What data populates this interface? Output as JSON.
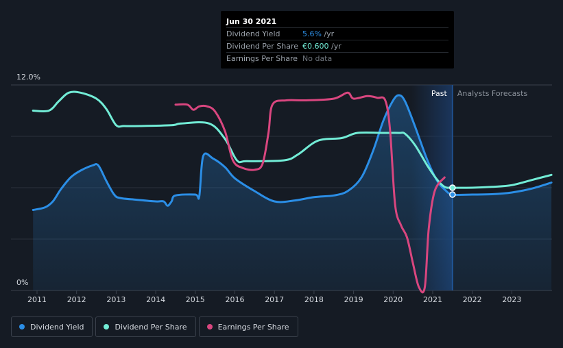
{
  "chart_data": {
    "type": "line",
    "y_axis": {
      "top_label": "12.0%",
      "bottom_label": "0%",
      "ylim": [
        0,
        12
      ],
      "unit": "%"
    },
    "x_axis": {
      "ticks": [
        "2011",
        "2012",
        "2013",
        "2014",
        "2015",
        "2016",
        "2017",
        "2018",
        "2019",
        "2020",
        "2021",
        "2022",
        "2023"
      ]
    },
    "periods": {
      "past": "Past",
      "forecast": "Analysts Forecasts"
    },
    "legend_placement": "bottom-left",
    "grid": true,
    "series": [
      {
        "name": "Dividend Yield",
        "color": "#2b8ee6",
        "area": true,
        "points": [
          [
            2010.9,
            4.7
          ],
          [
            2011.2,
            4.85
          ],
          [
            2011.4,
            5.2
          ],
          [
            2011.6,
            5.9
          ],
          [
            2011.85,
            6.6
          ],
          [
            2012.1,
            7.0
          ],
          [
            2012.4,
            7.3
          ],
          [
            2012.55,
            7.3
          ],
          [
            2012.75,
            6.4
          ],
          [
            2012.95,
            5.6
          ],
          [
            2013.1,
            5.4
          ],
          [
            2013.5,
            5.3
          ],
          [
            2014.0,
            5.2
          ],
          [
            2014.2,
            5.2
          ],
          [
            2014.3,
            4.95
          ],
          [
            2014.4,
            5.2
          ],
          [
            2014.5,
            5.55
          ],
          [
            2015.0,
            5.6
          ],
          [
            2015.1,
            5.5
          ],
          [
            2015.2,
            7.85
          ],
          [
            2015.45,
            7.7
          ],
          [
            2015.75,
            7.2
          ],
          [
            2016.0,
            6.55
          ],
          [
            2016.5,
            5.8
          ],
          [
            2017.0,
            5.2
          ],
          [
            2017.5,
            5.25
          ],
          [
            2018.0,
            5.45
          ],
          [
            2018.5,
            5.55
          ],
          [
            2018.85,
            5.8
          ],
          [
            2019.2,
            6.6
          ],
          [
            2019.5,
            8.2
          ],
          [
            2019.75,
            9.9
          ],
          [
            2020.0,
            11.1
          ],
          [
            2020.15,
            11.4
          ],
          [
            2020.3,
            11.05
          ],
          [
            2020.55,
            9.6
          ],
          [
            2020.85,
            7.7
          ],
          [
            2021.1,
            6.45
          ],
          [
            2021.3,
            5.9
          ],
          [
            2021.5,
            5.6
          ],
          [
            2022.0,
            5.6
          ],
          [
            2022.5,
            5.62
          ],
          [
            2023.0,
            5.72
          ],
          [
            2023.5,
            5.95
          ],
          [
            2024.0,
            6.3
          ]
        ]
      },
      {
        "name": "Dividend Per Share",
        "color": "#72ecd6",
        "area": false,
        "points": [
          [
            2010.9,
            10.5
          ],
          [
            2011.3,
            10.5
          ],
          [
            2011.55,
            11.05
          ],
          [
            2011.8,
            11.55
          ],
          [
            2012.1,
            11.55
          ],
          [
            2012.5,
            11.2
          ],
          [
            2012.75,
            10.6
          ],
          [
            2013.0,
            9.65
          ],
          [
            2013.2,
            9.6
          ],
          [
            2013.6,
            9.6
          ],
          [
            2014.4,
            9.65
          ],
          [
            2014.65,
            9.75
          ],
          [
            2015.35,
            9.75
          ],
          [
            2015.75,
            8.85
          ],
          [
            2016.05,
            7.6
          ],
          [
            2016.3,
            7.55
          ],
          [
            2017.25,
            7.6
          ],
          [
            2017.6,
            7.95
          ],
          [
            2018.1,
            8.75
          ],
          [
            2018.7,
            8.9
          ],
          [
            2019.1,
            9.2
          ],
          [
            2019.75,
            9.2
          ],
          [
            2020.15,
            9.2
          ],
          [
            2020.3,
            9.15
          ],
          [
            2020.55,
            8.5
          ],
          [
            2020.85,
            7.35
          ],
          [
            2021.1,
            6.5
          ],
          [
            2021.3,
            6.05
          ],
          [
            2021.5,
            6.0
          ],
          [
            2022.0,
            6.0
          ],
          [
            2022.5,
            6.05
          ],
          [
            2023.0,
            6.15
          ],
          [
            2023.5,
            6.45
          ],
          [
            2024.0,
            6.75
          ]
        ]
      },
      {
        "name": "Earnings Per Share",
        "color": "#d9467f",
        "area": false,
        "points": [
          [
            2014.5,
            10.85
          ],
          [
            2014.8,
            10.85
          ],
          [
            2014.95,
            10.55
          ],
          [
            2015.1,
            10.75
          ],
          [
            2015.3,
            10.75
          ],
          [
            2015.5,
            10.45
          ],
          [
            2015.75,
            9.3
          ],
          [
            2015.95,
            7.6
          ],
          [
            2016.2,
            7.15
          ],
          [
            2016.5,
            7.05
          ],
          [
            2016.7,
            7.4
          ],
          [
            2016.85,
            9.2
          ],
          [
            2016.95,
            10.85
          ],
          [
            2017.3,
            11.1
          ],
          [
            2017.8,
            11.1
          ],
          [
            2018.5,
            11.2
          ],
          [
            2018.85,
            11.55
          ],
          [
            2019.0,
            11.2
          ],
          [
            2019.35,
            11.35
          ],
          [
            2019.6,
            11.25
          ],
          [
            2019.8,
            11.1
          ],
          [
            2019.92,
            9.4
          ],
          [
            2020.05,
            5.0
          ],
          [
            2020.2,
            3.8
          ],
          [
            2020.35,
            3.1
          ],
          [
            2020.5,
            1.6
          ],
          [
            2020.65,
            0.2
          ],
          [
            2020.8,
            0.2
          ],
          [
            2020.9,
            3.6
          ],
          [
            2021.05,
            5.8
          ],
          [
            2021.3,
            6.6
          ]
        ]
      }
    ],
    "forecast_start": 2021.5
  },
  "tooltip": {
    "date": "Jun 30 2021",
    "rows": [
      {
        "label": "Dividend Yield",
        "value": "5.6%",
        "suffix": " /yr",
        "color": "#2b8ee6"
      },
      {
        "label": "Dividend Per Share",
        "value": "€0.600",
        "suffix": " /yr",
        "color": "#72ecd6"
      },
      {
        "label": "Earnings Per Share",
        "value": "No data",
        "suffix": "",
        "color": "#6e747c"
      }
    ]
  },
  "legend": [
    {
      "label": "Dividend Yield",
      "color": "#2b8ee6"
    },
    {
      "label": "Dividend Per Share",
      "color": "#72ecd6"
    },
    {
      "label": "Earnings Per Share",
      "color": "#d9467f"
    }
  ]
}
